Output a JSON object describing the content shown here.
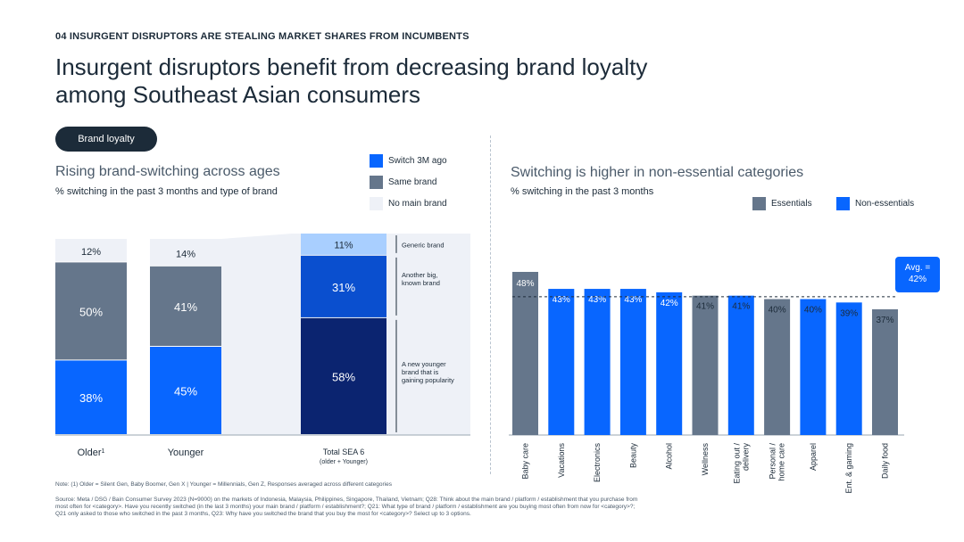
{
  "section_label": "04 INSURGENT DISRUPTORS ARE STEALING MARKET SHARES FROM INCUMBENTS",
  "headline_line1": "Insurgent disruptors benefit from decreasing brand loyalty",
  "headline_line2": "among Southeast Asian consumers",
  "pill_label": "Brand loyalty",
  "colors": {
    "switch": "#0866ff",
    "same": "#65768b",
    "none": "#eef1f7",
    "generic": "#a9cfff",
    "bigbrand": "#0a4fcf",
    "newer": "#0b2470",
    "navy": "#1c2b39"
  },
  "left_chart": {
    "title": "Rising brand-switching across ages",
    "subtitle": "% switching in the past 3 months and type of brand",
    "legend": [
      "Switch 3M ago",
      "Same brand",
      "No main brand"
    ]
  },
  "right_chart": {
    "title": "Switching is higher in non-essential categories",
    "subtitle": "% switching in the past 3 months",
    "legend": [
      "Essentials",
      "Non-essentials"
    ],
    "avg_label": "Avg. =",
    "avg_value": "42%"
  },
  "chart_data": [
    {
      "type": "bar",
      "stacked": true,
      "categories": [
        "Older",
        "Younger"
      ],
      "category_footnote": [
        "1",
        ""
      ],
      "series": [
        {
          "name": "Switch 3M ago",
          "values": [
            38,
            45
          ],
          "labels": [
            "38%",
            "45%"
          ]
        },
        {
          "name": "Same brand",
          "values": [
            50,
            41
          ],
          "labels": [
            "50%",
            "41%"
          ]
        },
        {
          "name": "No main brand",
          "values": [
            12,
            14
          ],
          "labels": [
            "12%",
            "14%"
          ]
        }
      ]
    },
    {
      "type": "bar",
      "stacked": true,
      "categories": [
        "Total SEA 6"
      ],
      "category_sub": "(older + Younger)",
      "series": [
        {
          "name": "A new younger brand that is gaining popularity",
          "values": [
            58
          ],
          "labels": [
            "58%"
          ]
        },
        {
          "name": "Another big, known brand",
          "values": [
            31
          ],
          "labels": [
            "31%"
          ]
        },
        {
          "name": "Generic brand",
          "values": [
            11
          ],
          "labels": [
            "11%"
          ]
        }
      ],
      "annotations": [
        "Generic brand",
        "Another big, known brand",
        "A new younger brand that is gaining popularity"
      ]
    },
    {
      "type": "bar",
      "categories": [
        "Baby care",
        "Vacations",
        "Electronics",
        "Beauty",
        "Alcohol",
        "Wellness",
        "Eating out / delivery",
        "Personal / home care",
        "Apparel",
        "Ent. & gaming",
        "Daily food"
      ],
      "values": [
        48,
        43,
        43,
        43,
        42,
        41,
        41,
        40,
        40,
        39,
        37
      ],
      "labels": [
        "48%",
        "43%",
        "43%",
        "43%",
        "42%",
        "41%",
        "41%",
        "40%",
        "40%",
        "39%",
        "37%"
      ],
      "group": [
        "Essentials",
        "Non-essentials",
        "Non-essentials",
        "Non-essentials",
        "Non-essentials",
        "Essentials",
        "Non-essentials",
        "Essentials",
        "Non-essentials",
        "Non-essentials",
        "Essentials"
      ],
      "average": 42,
      "ylim": [
        0,
        48
      ]
    }
  ],
  "note": "Note: (1) Older = Silent Gen, Baby Boomer, Gen X | Younger = Millennials, Gen Z, Responses averaged across different categories",
  "source_line1": "Source: Meta / DSG / Bain Consumer Survey 2023 (N=9000) on the markets of Indonesia, Malaysia, Philippines, Singapore, Thailand, Vietnam; Q28: Think about the main brand / platform / establishment that you purchase from",
  "source_line2": "most often for <category>. Have you recently switched (in the last 3 months) your main brand / platform / establishment?; Q21: What type of brand / platform / establishment are you buying most often from now for <category>?;",
  "source_line3": "Q21 only asked to those who switched in the past 3 months, Q23: Why have you switched the brand that you buy the most for <category>? Select up to 3 options."
}
